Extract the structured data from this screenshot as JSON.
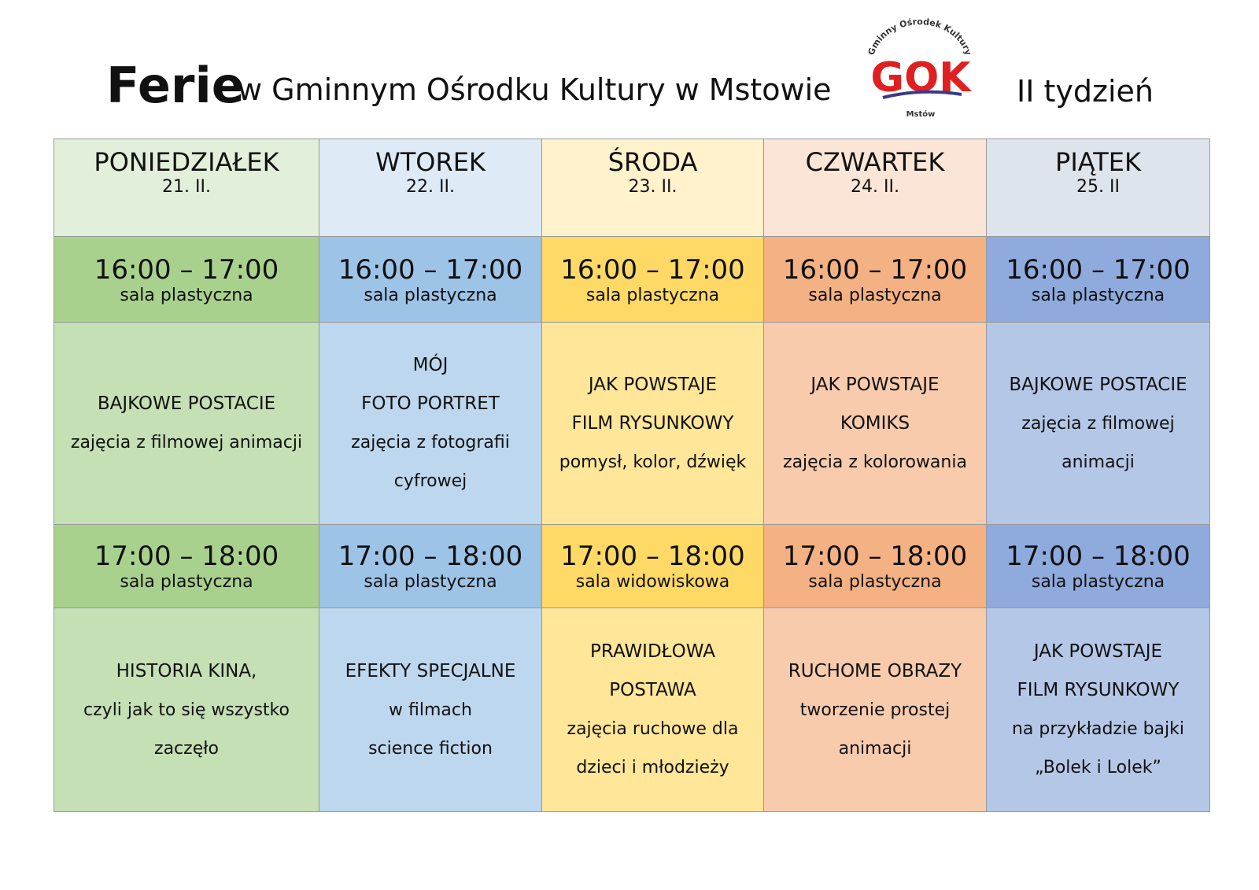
{
  "header": {
    "title": "Ferie",
    "subtitle": "w Gminnym Ośrodku Kultury w Mstowie",
    "week": "II tydzień"
  },
  "logo": {
    "arc": "Gminny Ośrodek Kultury",
    "letters": "GOK",
    "place": "Mstów"
  },
  "days": [
    {
      "name": "PONIEDZIAŁEK",
      "date": "21. II.",
      "slots": [
        {
          "time": "16:00 – 17:00",
          "room": "sala plastyczna",
          "title": [
            "BAJKOWE POSTACIE"
          ],
          "description": [
            "zajęcia z filmowej animacji"
          ]
        },
        {
          "time": "17:00 – 18:00",
          "room": "sala plastyczna",
          "title": [
            "HISTORIA KINA,"
          ],
          "description": [
            "czyli jak to się wszystko",
            "zaczęło"
          ]
        }
      ]
    },
    {
      "name": "WTOREK",
      "date": "22. II.",
      "slots": [
        {
          "time": "16:00 – 17:00",
          "room": "sala plastyczna",
          "title": [
            "MÓJ",
            "FOTO PORTRET"
          ],
          "description": [
            "zajęcia z fotografii",
            "cyfrowej"
          ]
        },
        {
          "time": "17:00 – 18:00",
          "room": "sala plastyczna",
          "title": [
            "EFEKTY SPECJALNE"
          ],
          "description": [
            "w filmach",
            "science fiction"
          ]
        }
      ]
    },
    {
      "name": "ŚRODA",
      "date": "23. II.",
      "slots": [
        {
          "time": "16:00 – 17:00",
          "room": "sala plastyczna",
          "title": [
            "JAK POWSTAJE",
            "FILM RYSUNKOWY"
          ],
          "description": [
            "pomysł, kolor, dźwięk"
          ]
        },
        {
          "time": "17:00 – 18:00",
          "room": "sala widowiskowa",
          "title": [
            "PRAWIDŁOWA",
            "POSTAWA"
          ],
          "description": [
            "zajęcia ruchowe dla",
            "dzieci i młodzieży"
          ]
        }
      ]
    },
    {
      "name": "CZWARTEK",
      "date": "24. II.",
      "slots": [
        {
          "time": "16:00 – 17:00",
          "room": "sala plastyczna",
          "title": [
            "JAK POWSTAJE",
            "KOMIKS"
          ],
          "description": [
            "zajęcia z kolorowania"
          ]
        },
        {
          "time": "17:00 – 18:00",
          "room": "sala plastyczna",
          "title": [
            "RUCHOME OBRAZY"
          ],
          "description": [
            "tworzenie prostej",
            "animacji"
          ]
        }
      ]
    },
    {
      "name": "PIĄTEK",
      "date": "25. II",
      "slots": [
        {
          "time": "16:00 – 17:00",
          "room": "sala plastyczna",
          "title": [
            "BAJKOWE POSTACIE"
          ],
          "description": [
            "zajęcia z filmowej",
            "animacji"
          ]
        },
        {
          "time": "17:00 – 18:00",
          "room": "sala plastyczna",
          "title": [
            "JAK POWSTAJE",
            "FILM RYSUNKOWY"
          ],
          "description": [
            "na przykładzie bajki",
            "„Bolek i Lolek”"
          ]
        }
      ]
    }
  ]
}
